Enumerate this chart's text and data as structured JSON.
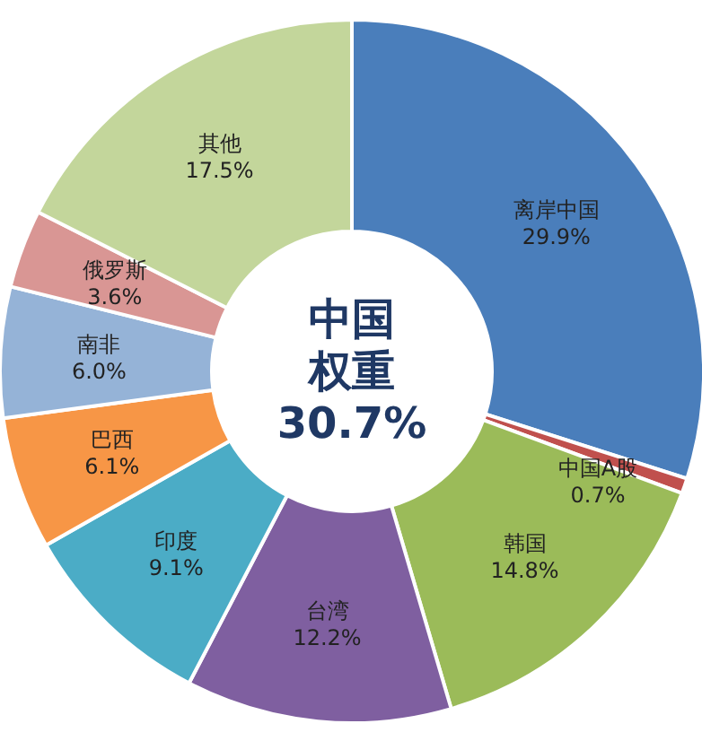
{
  "chart_data": {
    "type": "donut",
    "categories": [
      "离岸中国",
      "中国A股",
      "韩国",
      "台湾",
      "印度",
      "巴西",
      "南非",
      "俄罗斯",
      "其他"
    ],
    "values": [
      29.9,
      0.7,
      14.8,
      12.2,
      9.1,
      6.1,
      6.0,
      3.6,
      17.5
    ],
    "value_labels": [
      "29.9%",
      "0.7%",
      "14.8%",
      "12.2%",
      "9.1%",
      "6.1%",
      "6.0%",
      "3.6%",
      "17.5%"
    ],
    "colors": [
      "#4a7ebb",
      "#c0504d",
      "#9bbb59",
      "#7f5fa0",
      "#4bacc6",
      "#f79646",
      "#95b3d7",
      "#d99694",
      "#c3d69b"
    ],
    "annotations": [
      "中国",
      "权重",
      "30.7%"
    ],
    "legend": false
  }
}
